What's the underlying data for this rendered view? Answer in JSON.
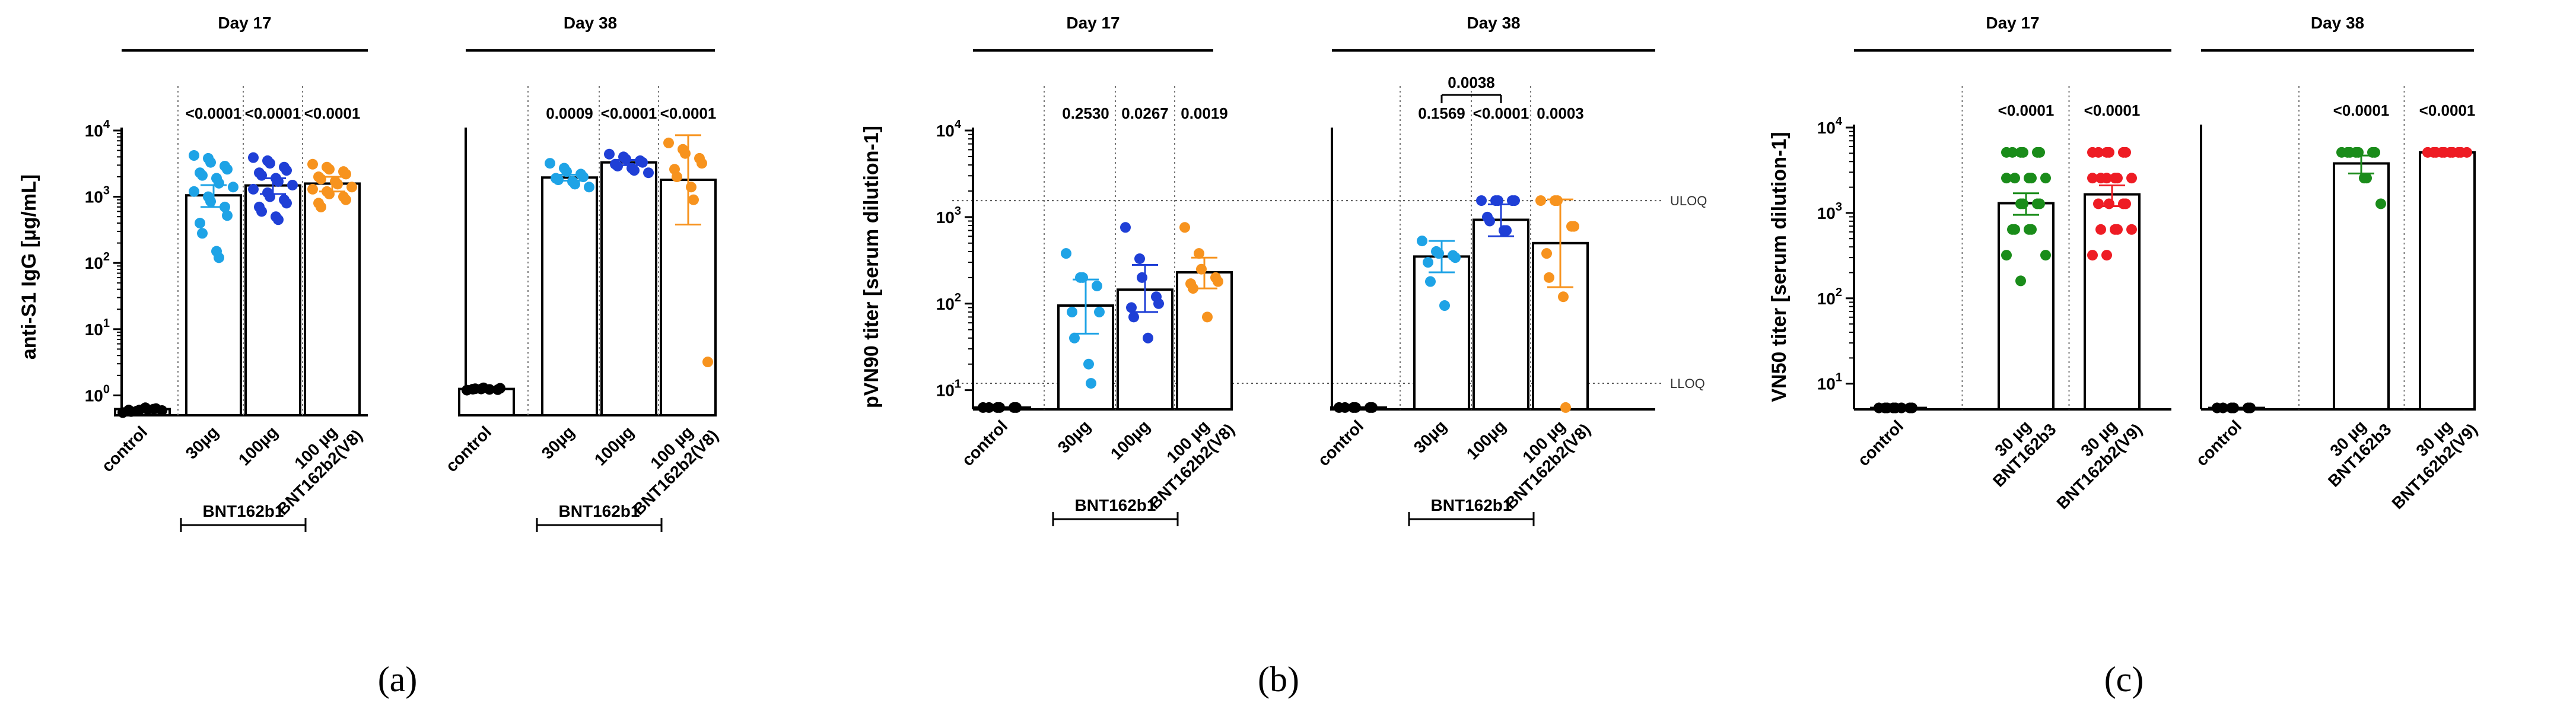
{
  "chart_data": [
    {
      "panel": "(a)",
      "type": "scatter",
      "ylabel": "anti-S1 IgG [µg/mL]",
      "yscale": "log",
      "ylim": [
        0.5,
        10000
      ],
      "yticks": [
        1,
        10,
        100,
        1000,
        10000
      ],
      "ytick_labels": [
        "10^0",
        "10^1",
        "10^2",
        "10^3",
        "10^4"
      ],
      "groups": [
        {
          "title": "Day 17",
          "bracket": {
            "label": "BNT162b1",
            "categories": [
              1,
              2
            ]
          },
          "categories": [
            {
              "label": "control",
              "color": "#000000",
              "bar": 0.62,
              "points": [
                0.55,
                0.58,
                0.6,
                0.62,
                0.63,
                0.6,
                0.57,
                0.65,
                0.61,
                0.59
              ],
              "p": null
            },
            {
              "label": "30µg",
              "color": "#1ea3e6",
              "bar": 1050,
              "err": [
                700,
                1500
              ],
              "p": "<0.0001",
              "points": [
                4200,
                3800,
                3300,
                2900,
                2600,
                2300,
                2100,
                1900,
                1600,
                1400,
                1200,
                1000,
                850,
                700,
                520,
                400,
                280,
                150,
                120
              ]
            },
            {
              "label": "100µg",
              "color": "#1f3fd6",
              "bar": 1480,
              "err": [
                1100,
                1900
              ],
              "p": "<0.0001",
              "points": [
                3900,
                3500,
                3200,
                2800,
                2500,
                2300,
                2100,
                1900,
                1700,
                1500,
                1300,
                1150,
                1000,
                900,
                800,
                700,
                600,
                500,
                450
              ]
            },
            {
              "label": "100 µg BNT162b2(V8)",
              "color": "#f7931e",
              "bar": 1580,
              "err": [
                1200,
                2000
              ],
              "p": "<0.0001",
              "points": [
                3100,
                2800,
                2600,
                2400,
                2200,
                2000,
                1850,
                1700,
                1550,
                1400,
                1300,
                1200,
                1100,
                1000,
                900,
                800,
                700
              ]
            }
          ]
        },
        {
          "title": "Day 38",
          "bracket": {
            "label": "BNT162b1",
            "categories": [
              1,
              2
            ]
          },
          "categories": [
            {
              "label": "control",
              "color": "#000000",
              "bar": 1.25,
              "points": [
                1.2,
                1.25,
                1.3,
                1.22,
                1.28,
                1.24,
                1.26,
                1.23
              ],
              "p": null
            },
            {
              "label": "30µg",
              "color": "#1ea3e6",
              "bar": 1950,
              "err": [
                1750,
                2150
              ],
              "p": "0.0009",
              "points": [
                3200,
                2700,
                2400,
                2200,
                2000,
                1900,
                1800,
                1700,
                1550,
                1400
              ]
            },
            {
              "label": "100µg",
              "color": "#1f3fd6",
              "bar": 3300,
              "err": [
                3000,
                3600
              ],
              "p": "<0.0001",
              "points": [
                4400,
                4000,
                3700,
                3500,
                3300,
                3100,
                2900,
                2700,
                2500,
                2300
              ]
            },
            {
              "label": "100 µg BNT162b2(V8)",
              "color": "#f7931e",
              "bar": 1800,
              "err": [
                380,
                8500
              ],
              "p": "<0.0001",
              "points": [
                6500,
                5200,
                4500,
                3800,
                3200,
                2600,
                2000,
                1400,
                900,
                3.2
              ]
            }
          ]
        }
      ]
    },
    {
      "panel": "(b)",
      "type": "scatter",
      "ylabel": "pVN90 titer [serum dilution-1]",
      "yscale": "log",
      "ylim": [
        6,
        10000
      ],
      "yticks": [
        10,
        100,
        1000,
        10000
      ],
      "ytick_labels": [
        "10^1",
        "10^2",
        "10^3",
        "10^4"
      ],
      "ref_lines": [
        {
          "label": "ULOQ",
          "value": 1550
        },
        {
          "label": "LLOQ",
          "value": 12
        }
      ],
      "groups": [
        {
          "title": "Day 17",
          "bracket": {
            "label": "BNT162b1",
            "categories": [
              1,
              2
            ]
          },
          "categories": [
            {
              "label": "control",
              "color": "#000000",
              "bar": 6.3,
              "points": [
                6.3,
                6.3,
                6.3,
                6.3,
                6.3,
                6.3
              ],
              "p": null
            },
            {
              "label": "30µg",
              "color": "#1ea3e6",
              "bar": 95,
              "err": [
                45,
                190
              ],
              "p": "0.2530",
              "points": [
                380,
                200,
                200,
                160,
                80,
                80,
                40,
                20,
                12
              ]
            },
            {
              "label": "100µg",
              "color": "#1f3fd6",
              "bar": 145,
              "err": [
                80,
                280
              ],
              "p": "0.0267",
              "points": [
                760,
                330,
                200,
                120,
                100,
                90,
                70,
                40
              ]
            },
            {
              "label": "100 µg BNT162b2(V8)",
              "color": "#f7931e",
              "bar": 230,
              "err": [
                150,
                340
              ],
              "p": "0.0019",
              "points": [
                760,
                380,
                250,
                200,
                180,
                170,
                150,
                70
              ]
            }
          ]
        },
        {
          "title": "Day 38",
          "bracket": {
            "label": "BNT162b1",
            "categories": [
              1,
              2
            ]
          },
          "comparison": {
            "p": "0.0038",
            "categories": [
              1,
              2
            ]
          },
          "categories": [
            {
              "label": "control",
              "color": "#000000",
              "bar": 6.3,
              "points": [
                6.3,
                6.3,
                6.3,
                6.3,
                6.3,
                6.3
              ],
              "p": null
            },
            {
              "label": "30µg",
              "color": "#1ea3e6",
              "bar": 350,
              "err": [
                230,
                530
              ],
              "p": "0.1569",
              "points": [
                530,
                400,
                380,
                360,
                340,
                300,
                180,
                95
              ]
            },
            {
              "label": "100µg",
              "color": "#1f3fd6",
              "bar": 930,
              "err": [
                600,
                1400
              ],
              "p": "<0.0001",
              "points": [
                1550,
                1550,
                1550,
                1550,
                1550,
                1000,
                900,
                700,
                700
              ]
            },
            {
              "label": "100 µg BNT162b2(V8)",
              "color": "#f7931e",
              "bar": 500,
              "err": [
                155,
                1600
              ],
              "p": "0.0003",
              "points": [
                1550,
                1550,
                1550,
                780,
                780,
                380,
                200,
                120,
                6.3
              ]
            }
          ]
        }
      ]
    },
    {
      "panel": "(c)",
      "type": "scatter",
      "ylabel": "VN50 titer [serum dilution-1]",
      "yscale": "log",
      "ylim": [
        5,
        10000
      ],
      "yticks": [
        10,
        100,
        1000,
        10000
      ],
      "ytick_labels": [
        "10^1",
        "10^2",
        "10^3",
        "10^4"
      ],
      "groups": [
        {
          "title": "Day 17",
          "categories": [
            {
              "label": "control",
              "color": "#000000",
              "bar": 5.2,
              "points": [
                5.2,
                5.2,
                5.2,
                5.2,
                5.2,
                5.2,
                5.2,
                5.2
              ],
              "p": null
            },
            {
              "label": "30 µg BNT162b3",
              "color": "#1a8c1a",
              "bar": 1300,
              "err": [
                950,
                1700
              ],
              "p": "<0.0001",
              "points": [
                5120,
                5120,
                5120,
                5120,
                5120,
                5120,
                2560,
                2560,
                2560,
                2560,
                2560,
                1280,
                1280,
                1280,
                1280,
                640,
                640,
                640,
                640,
                320,
                320,
                160
              ]
            },
            {
              "label": "30 µg BNT162b2(V9)",
              "color": "#ee1c24",
              "bar": 1650,
              "err": [
                1200,
                2100
              ],
              "p": "<0.0001",
              "points": [
                5120,
                5120,
                5120,
                5120,
                5120,
                5120,
                2560,
                2560,
                2560,
                2560,
                2560,
                2560,
                1280,
                1280,
                1280,
                1280,
                640,
                640,
                640,
                640,
                320,
                320
              ]
            }
          ]
        },
        {
          "title": "Day 38",
          "categories": [
            {
              "label": "control",
              "color": "#000000",
              "bar": 5.2,
              "points": [
                5.2,
                5.2,
                5.2,
                5.2,
                5.2,
                5.2
              ],
              "p": null
            },
            {
              "label": "30 µg BNT162b3",
              "color": "#1a8c1a",
              "bar": 3800,
              "err": [
                2900,
                4700
              ],
              "p": "<0.0001",
              "points": [
                5120,
                5120,
                5120,
                5120,
                5120,
                5120,
                5120,
                2560,
                2560,
                1280
              ]
            },
            {
              "label": "30 µg BNT162b2(V9)",
              "color": "#ee1c24",
              "bar": 5120,
              "err": [
                5120,
                5120
              ],
              "p": "<0.0001",
              "points": [
                5120,
                5120,
                5120,
                5120,
                5120,
                5120,
                5120,
                5120,
                5120,
                5120
              ]
            }
          ]
        }
      ]
    }
  ]
}
